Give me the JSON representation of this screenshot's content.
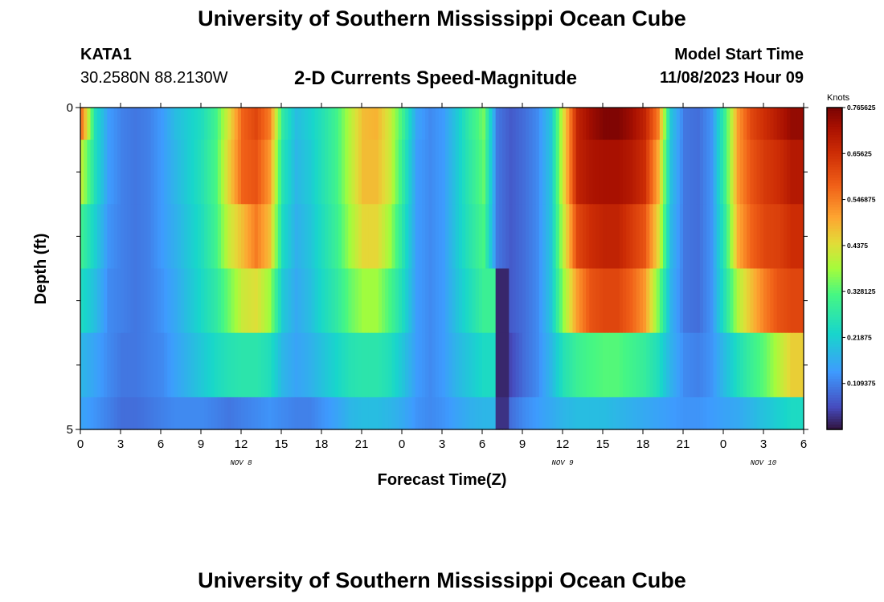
{
  "header": {
    "title": "University of Southern Mississippi Ocean Cube",
    "station": "KATA1",
    "coords": "30.2580N  88.2130W",
    "subtitle": "2-D Currents Speed-Magnitude",
    "model_label": "Model Start Time",
    "model_time": "11/08/2023 Hour 09"
  },
  "footer": {
    "title": "University of Southern Mississippi Ocean Cube"
  },
  "colors": {
    "background": "#ffffff",
    "axis": "#000000"
  },
  "chart_data": {
    "type": "heatmap",
    "xlabel": "Forecast Time(Z)",
    "ylabel": "Depth (ft)",
    "x_tick_labels": [
      "0",
      "3",
      "6",
      "9",
      "12",
      "15",
      "18",
      "21",
      "0",
      "3",
      "6",
      "9",
      "12",
      "15",
      "18",
      "21",
      "0",
      "3",
      "6"
    ],
    "x_range_hours": [
      0,
      54
    ],
    "date_labels": [
      {
        "text": "NOV 8",
        "hour": 12
      },
      {
        "text": "NOV 9",
        "hour": 36
      },
      {
        "text": "NOV 10",
        "hour": 51
      }
    ],
    "y_tick_labels": [
      "0",
      "5"
    ],
    "y_range_ft": [
      0,
      5
    ],
    "y_minor_ticks": [
      1,
      2,
      3,
      4
    ],
    "depth_bands_ft": [
      [
        0,
        0.5
      ],
      [
        0.5,
        1.5
      ],
      [
        1.5,
        2.5
      ],
      [
        2.5,
        3.5
      ],
      [
        3.5,
        4.5
      ],
      [
        4.5,
        5
      ]
    ],
    "column_hours": [
      0,
      1,
      2,
      3,
      4,
      5,
      6,
      7,
      8,
      9,
      10,
      11,
      12,
      13,
      14,
      15,
      16,
      17,
      18,
      19,
      20,
      21,
      22,
      23,
      24,
      25,
      26,
      27,
      28,
      29,
      30,
      31,
      32,
      33,
      34,
      35,
      36,
      37,
      38,
      39,
      40,
      41,
      42,
      43,
      44,
      45,
      46,
      47,
      48,
      49,
      50,
      51,
      52,
      53
    ],
    "values_knots": [
      [
        0.55,
        0.25,
        0.14,
        0.11,
        0.1,
        0.11,
        0.14,
        0.19,
        0.22,
        0.25,
        0.31,
        0.44,
        0.58,
        0.62,
        0.55,
        0.28,
        0.19,
        0.22,
        0.26,
        0.31,
        0.4,
        0.48,
        0.49,
        0.42,
        0.3,
        0.15,
        0.12,
        0.14,
        0.21,
        0.29,
        0.35,
        0.1,
        0.07,
        0.09,
        0.12,
        0.2,
        0.45,
        0.68,
        0.73,
        0.76,
        0.76,
        0.73,
        0.68,
        0.55,
        0.2,
        0.1,
        0.09,
        0.13,
        0.3,
        0.52,
        0.62,
        0.66,
        0.7,
        0.74
      ],
      [
        0.4,
        0.25,
        0.14,
        0.11,
        0.1,
        0.11,
        0.14,
        0.18,
        0.22,
        0.26,
        0.32,
        0.46,
        0.58,
        0.6,
        0.52,
        0.26,
        0.18,
        0.21,
        0.26,
        0.31,
        0.4,
        0.48,
        0.48,
        0.42,
        0.28,
        0.14,
        0.12,
        0.14,
        0.21,
        0.28,
        0.34,
        0.1,
        0.07,
        0.09,
        0.12,
        0.2,
        0.45,
        0.68,
        0.71,
        0.72,
        0.72,
        0.7,
        0.66,
        0.5,
        0.19,
        0.1,
        0.09,
        0.13,
        0.3,
        0.52,
        0.6,
        0.64,
        0.66,
        0.7
      ],
      [
        0.3,
        0.22,
        0.13,
        0.11,
        0.1,
        0.11,
        0.14,
        0.17,
        0.21,
        0.25,
        0.31,
        0.42,
        0.48,
        0.55,
        0.48,
        0.24,
        0.17,
        0.2,
        0.25,
        0.3,
        0.38,
        0.45,
        0.45,
        0.38,
        0.26,
        0.14,
        0.12,
        0.14,
        0.21,
        0.27,
        0.32,
        0.1,
        0.07,
        0.09,
        0.12,
        0.2,
        0.42,
        0.62,
        0.66,
        0.68,
        0.68,
        0.64,
        0.6,
        0.45,
        0.18,
        0.1,
        0.09,
        0.13,
        0.28,
        0.5,
        0.58,
        0.62,
        0.63,
        0.66
      ],
      [
        0.24,
        0.19,
        0.12,
        0.11,
        0.1,
        0.11,
        0.13,
        0.16,
        0.2,
        0.24,
        0.28,
        0.35,
        0.42,
        0.44,
        0.38,
        0.21,
        0.16,
        0.19,
        0.24,
        0.28,
        0.34,
        0.38,
        0.38,
        0.32,
        0.24,
        0.14,
        0.12,
        0.14,
        0.2,
        0.25,
        0.3,
        0.02,
        0.07,
        0.09,
        0.12,
        0.2,
        0.38,
        0.52,
        0.6,
        0.62,
        0.62,
        0.58,
        0.52,
        0.36,
        0.17,
        0.1,
        0.09,
        0.13,
        0.26,
        0.4,
        0.48,
        0.55,
        0.6,
        0.62
      ],
      [
        0.18,
        0.15,
        0.12,
        0.1,
        0.1,
        0.11,
        0.12,
        0.15,
        0.18,
        0.21,
        0.24,
        0.26,
        0.27,
        0.27,
        0.25,
        0.18,
        0.15,
        0.17,
        0.2,
        0.23,
        0.26,
        0.27,
        0.27,
        0.25,
        0.2,
        0.14,
        0.12,
        0.14,
        0.18,
        0.21,
        0.24,
        0.02,
        0.05,
        0.09,
        0.12,
        0.18,
        0.26,
        0.3,
        0.32,
        0.33,
        0.33,
        0.31,
        0.29,
        0.25,
        0.17,
        0.12,
        0.11,
        0.13,
        0.19,
        0.25,
        0.3,
        0.34,
        0.4,
        0.46
      ],
      [
        0.15,
        0.13,
        0.11,
        0.09,
        0.09,
        0.1,
        0.11,
        0.12,
        0.12,
        0.12,
        0.11,
        0.1,
        0.11,
        0.12,
        0.13,
        0.12,
        0.11,
        0.11,
        0.13,
        0.15,
        0.18,
        0.19,
        0.19,
        0.18,
        0.16,
        0.13,
        0.12,
        0.13,
        0.15,
        0.17,
        0.18,
        0.03,
        0.09,
        0.12,
        0.14,
        0.16,
        0.18,
        0.19,
        0.19,
        0.19,
        0.18,
        0.17,
        0.16,
        0.15,
        0.14,
        0.13,
        0.13,
        0.14,
        0.15,
        0.16,
        0.18,
        0.2,
        0.22,
        0.24
      ]
    ],
    "colorbar": {
      "title": "Knots",
      "range": [
        0,
        0.765625
      ],
      "tick_labels": [
        "0.765625",
        "0.65625",
        "0.546875",
        "0.4375",
        "0.328125",
        "0.21875",
        "0.109375"
      ],
      "tick_values": [
        0.765625,
        0.65625,
        0.546875,
        0.4375,
        0.328125,
        0.21875,
        0.109375
      ]
    }
  }
}
